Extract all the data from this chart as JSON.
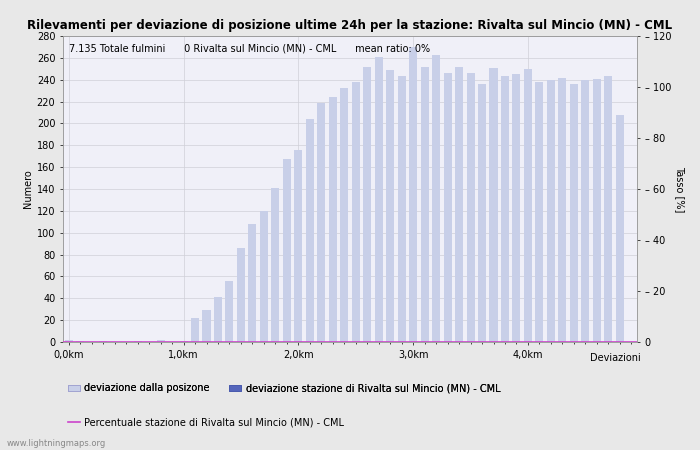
{
  "title": "Rilevamenti per deviazione di posizione ultime 24h per la stazione: Rivalta sul Mincio (MN) - CML",
  "subtitle": "7.135 Totale fulmini      0 Rivalta sul Mincio (MN) - CML      mean ratio: 0%",
  "xlabel": "Deviazioni",
  "ylabel_left": "Numero",
  "ylabel_right": "Tasso [%]",
  "ylim_left": [
    0,
    280
  ],
  "ylim_right": [
    0,
    120
  ],
  "xtick_positions": [
    0,
    10,
    20,
    30,
    40
  ],
  "xtick_labels": [
    "0,0km",
    "1,0km",
    "2,0km",
    "3,0km",
    "4,0km"
  ],
  "ytick_left": [
    0,
    20,
    40,
    60,
    80,
    100,
    120,
    140,
    160,
    180,
    200,
    220,
    240,
    260,
    280
  ],
  "ytick_right": [
    0,
    20,
    40,
    60,
    80,
    100,
    120
  ],
  "bar_values": [
    2,
    1,
    0,
    1,
    0,
    0,
    1,
    0,
    2,
    0,
    1,
    22,
    29,
    41,
    56,
    86,
    108,
    120,
    141,
    167,
    176,
    204,
    219,
    224,
    232,
    238,
    252,
    261,
    249,
    243,
    270,
    252,
    263,
    246,
    252,
    246,
    236,
    251,
    243,
    245,
    250,
    238,
    240,
    242,
    236,
    240,
    241,
    243,
    208,
    0
  ],
  "bar_color_light": "#c8cfe8",
  "bar_color_dark": "#5566bb",
  "station_bar_indices": [],
  "background_color": "#e8e8e8",
  "plot_bg_color": "#f0f0f8",
  "grid_color": "#d0d0d8",
  "border_color": "#999999",
  "legend_labels": [
    "deviazione dalla posizone",
    "deviazione stazione di Rivalta sul Mincio (MN) - CML",
    "Percentuale stazione di Rivalta sul Mincio (MN) - CML"
  ],
  "watermark": "www.lightningmaps.org",
  "title_fontsize": 8.5,
  "axis_label_fontsize": 7,
  "tick_fontsize": 7,
  "legend_fontsize": 7,
  "subtitle_fontsize": 7,
  "magenta_color": "#cc44cc",
  "right_tick_labels": [
    "0",
    "– 20",
    "– 40",
    "– 60",
    "– 80",
    "– 100",
    "– 120"
  ]
}
